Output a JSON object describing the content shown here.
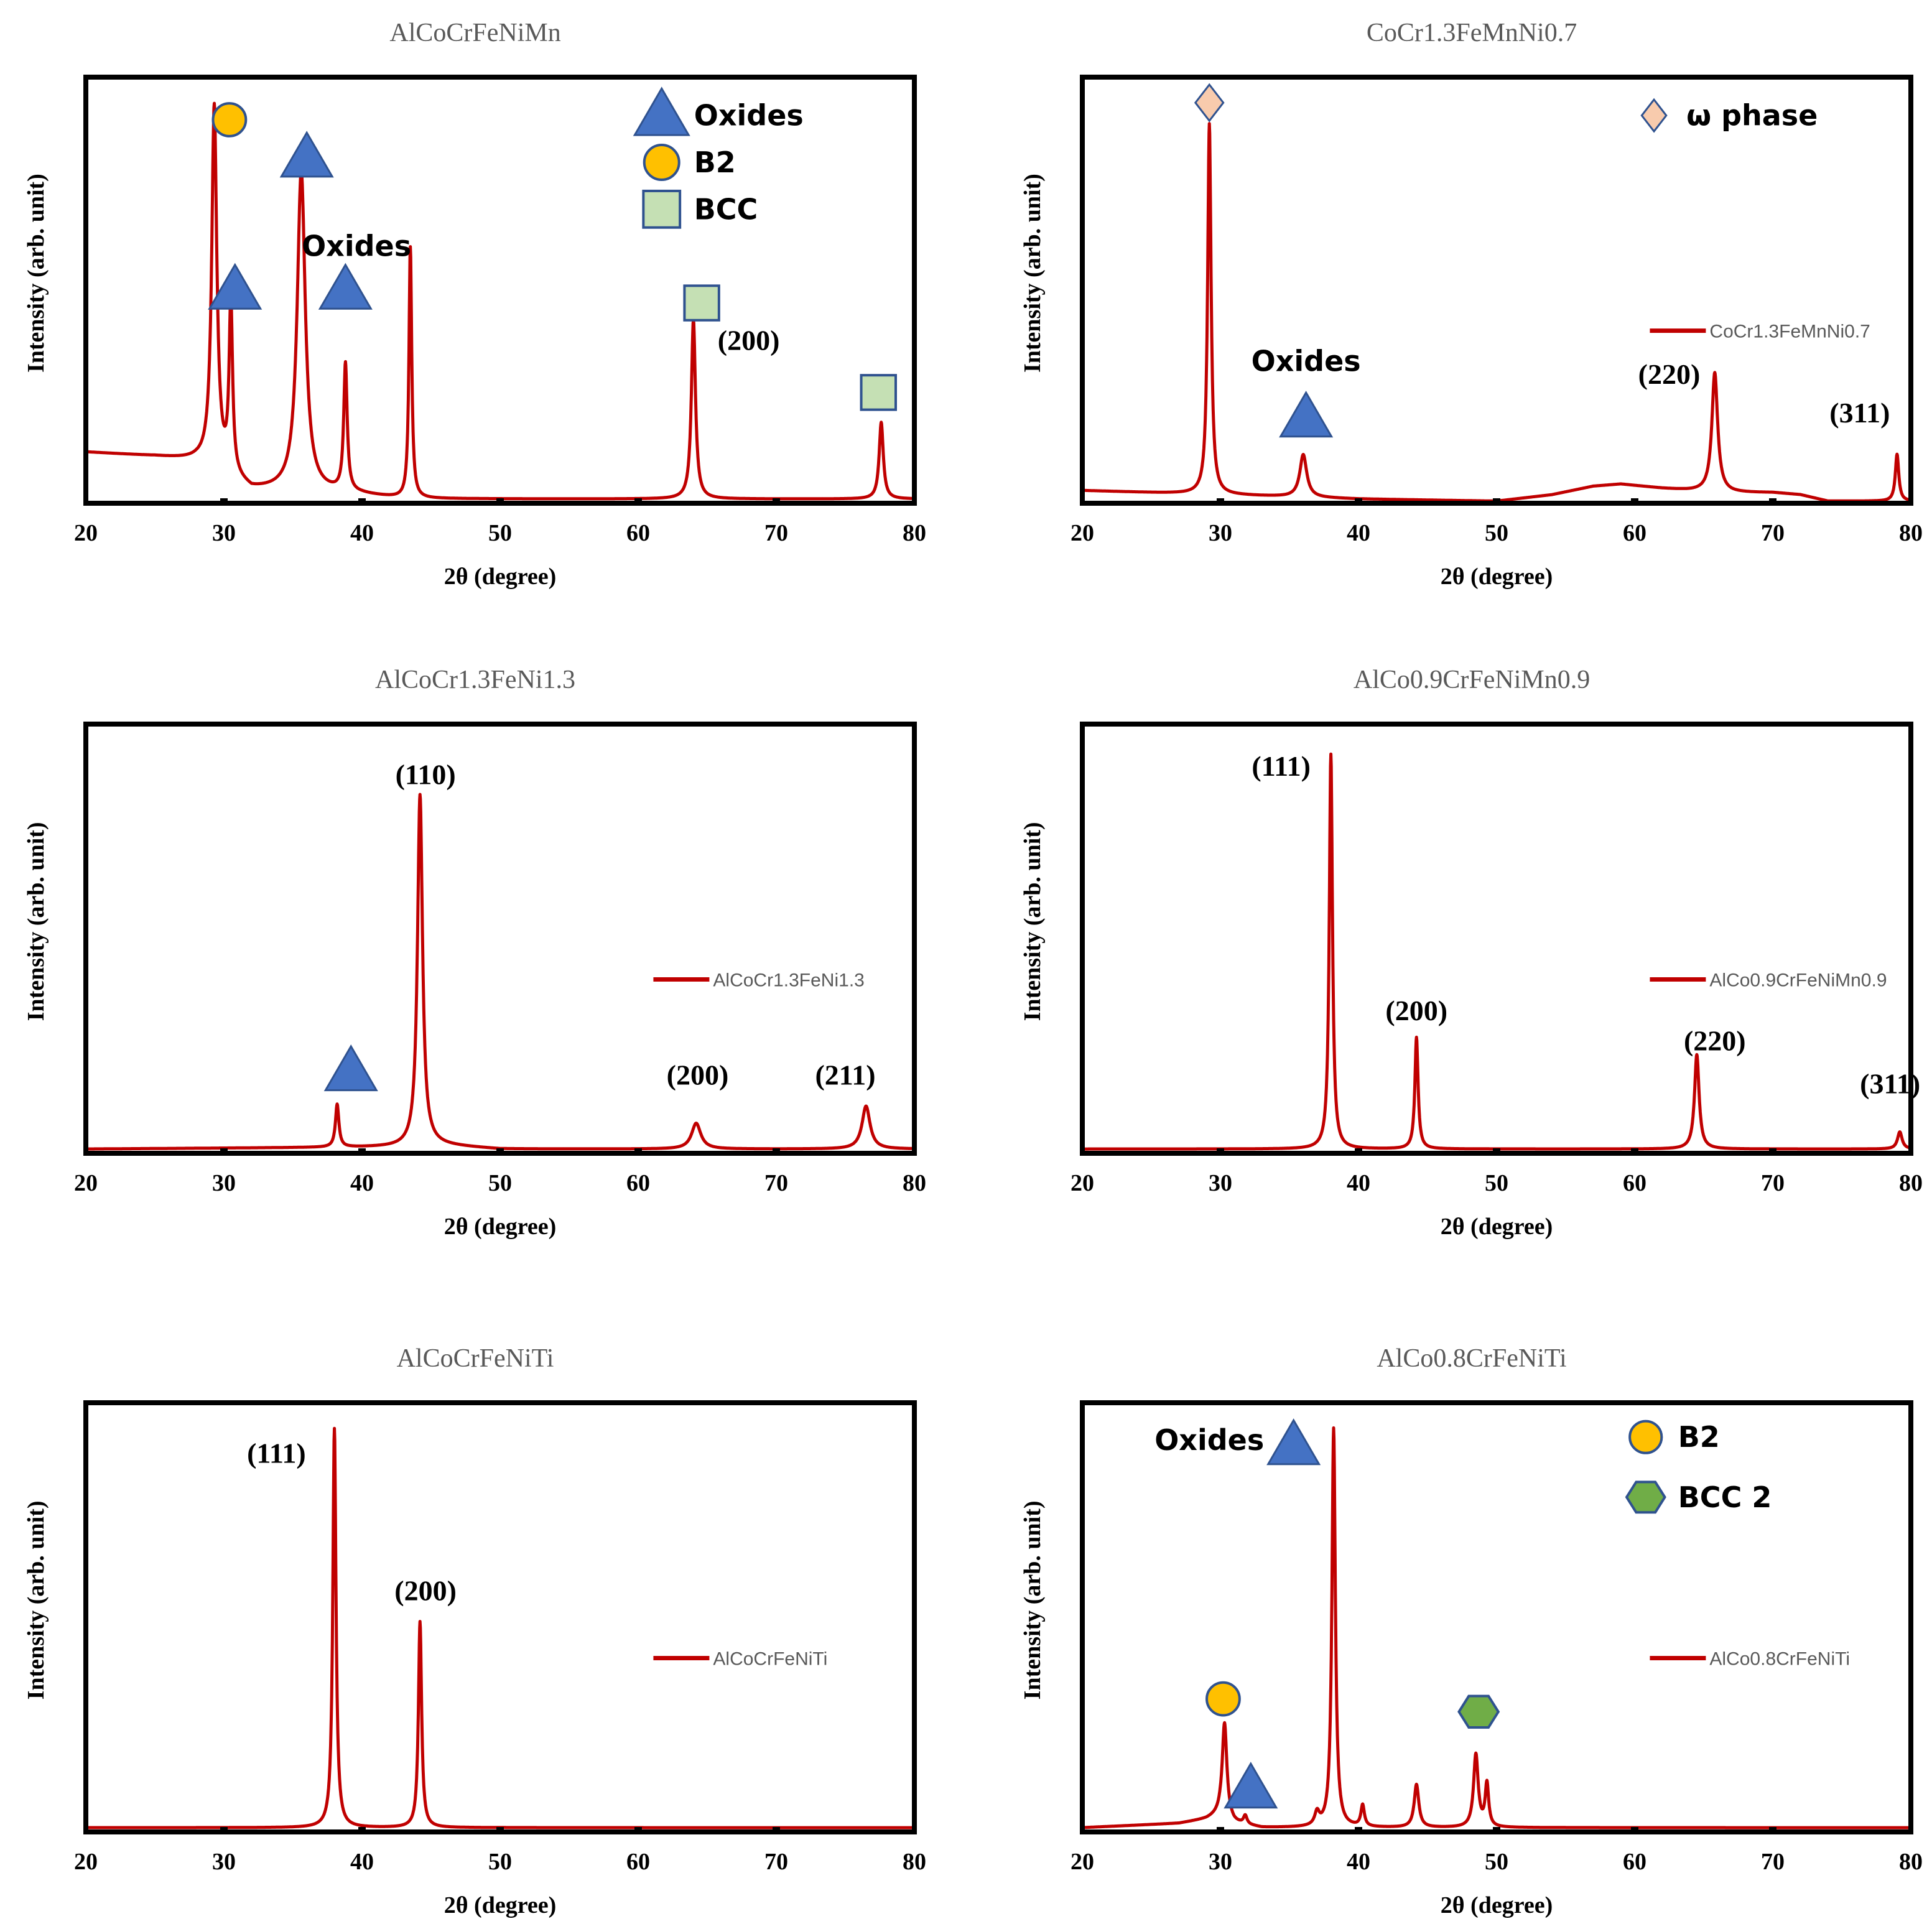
{
  "chart_data": [
    {
      "type": "line",
      "title": "AlCoCrFeNiMn",
      "xlabel": "2θ (degree)",
      "ylabel": "Intensity (arb. unit)",
      "xlim": [
        20,
        80
      ],
      "ylim": [
        0,
        100
      ],
      "xticks": [
        "20",
        "30",
        "40",
        "50",
        "60",
        "70",
        "80"
      ],
      "grid": false,
      "color": "#c00000",
      "series": [
        {
          "name": "",
          "baseline": 1,
          "background": [
            [
              20,
              12
            ],
            [
              25,
              11
            ],
            [
              28,
              10
            ],
            [
              29.3,
              9
            ],
            [
              30.5,
              6
            ],
            [
              32,
              3
            ],
            [
              35,
              3
            ],
            [
              40,
              2
            ],
            [
              43,
              1
            ],
            [
              44.5,
              1
            ],
            [
              50,
              1
            ],
            [
              80,
              1
            ]
          ],
          "peaks": [
            [
              29.3,
              84,
              0.22
            ],
            [
              30.5,
              40,
              0.15
            ],
            [
              35.6,
              75,
              0.35
            ],
            [
              38.8,
              30,
              0.15
            ],
            [
              43.5,
              59,
              0.12
            ],
            [
              64.0,
              42,
              0.18
            ],
            [
              77.6,
              18,
              0.18
            ]
          ]
        }
      ],
      "annotations": [
        {
          "kind": "circle",
          "x": 30.4,
          "y": 90
        },
        {
          "kind": "triangle",
          "x": 36.0,
          "y": 81
        },
        {
          "kind": "triangle",
          "x": 30.8,
          "y": 50
        },
        {
          "kind": "triangle",
          "x": 38.8,
          "y": 50
        },
        {
          "kind": "square",
          "x": 64.6,
          "y": 47
        },
        {
          "kind": "square",
          "x": 77.4,
          "y": 26
        },
        {
          "kind": "text",
          "style": "ann",
          "x": 39.6,
          "y": 58,
          "text": "Oxides"
        },
        {
          "kind": "text",
          "style": "hkl",
          "x": 68.0,
          "y": 36,
          "text": "(200)"
        }
      ],
      "legend": [
        {
          "marker": "triangle",
          "label": "Oxides"
        },
        {
          "marker": "circle",
          "label": "B2"
        },
        {
          "marker": "square",
          "label": "BCC"
        }
      ]
    },
    {
      "type": "line",
      "title": "CoCr1.3FeMnNi0.7",
      "xlabel": "2θ (degree)",
      "ylabel": "Intensity (arb. unit)",
      "xlim": [
        20,
        80
      ],
      "ylim": [
        0,
        100
      ],
      "xticks": [
        "20",
        "30",
        "40",
        "50",
        "60",
        "70",
        "80"
      ],
      "grid": false,
      "color": "#c00000",
      "series": [
        {
          "name": "CoCr1.3FeMnNi0.7",
          "baseline": 2,
          "background": [
            [
              20,
              3
            ],
            [
              30,
              2
            ],
            [
              40,
              1
            ],
            [
              50,
              0.5
            ],
            [
              54,
              2
            ],
            [
              57,
              4
            ],
            [
              59,
              4.5
            ],
            [
              62,
              3.5
            ],
            [
              64,
              3
            ],
            [
              67,
              2.5
            ],
            [
              70,
              2.5
            ],
            [
              72,
              2
            ],
            [
              74,
              0.5
            ],
            [
              80,
              0.5
            ]
          ],
          "peaks": [
            [
              29.2,
              87,
              0.15
            ],
            [
              36.0,
              10,
              0.3
            ],
            [
              65.8,
              28,
              0.25
            ],
            [
              79.0,
              11,
              0.15
            ]
          ]
        }
      ],
      "annotations": [
        {
          "kind": "diamond",
          "x": 29.2,
          "y": 94
        },
        {
          "kind": "triangle",
          "x": 36.2,
          "y": 20
        },
        {
          "kind": "text",
          "style": "ann",
          "x": 36.2,
          "y": 31,
          "text": "Oxides"
        },
        {
          "kind": "text",
          "style": "hkl",
          "x": 62.5,
          "y": 28,
          "text": "(220)"
        },
        {
          "kind": "text",
          "style": "hkl",
          "x": 76.3,
          "y": 19,
          "text": "(311)"
        }
      ],
      "legend": [
        {
          "marker": "diamond",
          "label": "ω phase"
        }
      ]
    },
    {
      "type": "line",
      "title": "AlCoCr1.3FeNi1.3",
      "xlabel": "2θ (degree)",
      "ylabel": "Intensity (arb. unit)",
      "xlim": [
        20,
        80
      ],
      "ylim": [
        0,
        100
      ],
      "xticks": [
        "20",
        "30",
        "40",
        "50",
        "60",
        "70",
        "80"
      ],
      "grid": false,
      "color": "#c00000",
      "series": [
        {
          "name": "AlCoCr1.3FeNi1.3",
          "baseline": 1,
          "background": [
            [
              20,
              1
            ],
            [
              44,
              1.5
            ],
            [
              45,
              2
            ],
            [
              50,
              1
            ],
            [
              80,
              1
            ]
          ],
          "peaks": [
            [
              38.2,
              10,
              0.15
            ],
            [
              44.2,
              82,
              0.22
            ],
            [
              64.2,
              6,
              0.4
            ],
            [
              76.5,
              10,
              0.35
            ]
          ]
        }
      ],
      "annotations": [
        {
          "kind": "triangle",
          "x": 39.2,
          "y": 19
        },
        {
          "kind": "text",
          "style": "hkl",
          "x": 44.6,
          "y": 86,
          "text": "(110)"
        },
        {
          "kind": "text",
          "style": "hkl",
          "x": 64.3,
          "y": 16,
          "text": "(200)"
        },
        {
          "kind": "text",
          "style": "hkl",
          "x": 75.0,
          "y": 16,
          "text": "(211)"
        }
      ],
      "legend": []
    },
    {
      "type": "line",
      "title": "AlCo0.9CrFeNiMn0.9",
      "xlabel": "2θ (degree)",
      "ylabel": "Intensity (arb. unit)",
      "xlim": [
        20,
        80
      ],
      "ylim": [
        0,
        100
      ],
      "xticks": [
        "20",
        "30",
        "40",
        "50",
        "60",
        "70",
        "80"
      ],
      "grid": false,
      "color": "#c00000",
      "series": [
        {
          "name": "AlCo0.9CrFeNiMn0.9",
          "baseline": 1,
          "background": [
            [
              20,
              1
            ],
            [
              80,
              1
            ]
          ],
          "peaks": [
            [
              38.0,
              92,
              0.14
            ],
            [
              44.2,
              26,
              0.14
            ],
            [
              64.5,
              22,
              0.2
            ],
            [
              79.2,
              4,
              0.2
            ]
          ]
        }
      ],
      "annotations": [
        {
          "kind": "text",
          "style": "hkl",
          "x": 34.4,
          "y": 88,
          "text": "(111)"
        },
        {
          "kind": "text",
          "style": "hkl",
          "x": 44.2,
          "y": 31,
          "text": "(200)"
        },
        {
          "kind": "text",
          "style": "hkl",
          "x": 65.8,
          "y": 24,
          "text": "(220)"
        },
        {
          "kind": "text",
          "style": "hkl",
          "x": 78.5,
          "y": 14,
          "text": "(311)"
        }
      ],
      "legend": []
    },
    {
      "type": "line",
      "title": "AlCoCrFeNiTi",
      "xlabel": "2θ (degree)",
      "ylabel": "Intensity (arb. unit)",
      "xlim": [
        20,
        80
      ],
      "ylim": [
        0,
        100
      ],
      "xticks": [
        "20",
        "30",
        "40",
        "50",
        "60",
        "70",
        "80"
      ],
      "grid": false,
      "color": "#c00000",
      "series": [
        {
          "name": "AlCoCrFeNiTi",
          "baseline": 1,
          "background": [
            [
              20,
              1
            ],
            [
              80,
              1
            ]
          ],
          "peaks": [
            [
              38.0,
              93,
              0.14
            ],
            [
              44.2,
              48,
              0.14
            ]
          ]
        }
      ],
      "annotations": [
        {
          "kind": "text",
          "style": "hkl",
          "x": 33.8,
          "y": 86,
          "text": "(111)"
        },
        {
          "kind": "text",
          "style": "hkl",
          "x": 44.6,
          "y": 54,
          "text": "(200)"
        }
      ],
      "legend": []
    },
    {
      "type": "line",
      "title": "AlCo0.8CrFeNiTi",
      "xlabel": "2θ (degree)",
      "ylabel": "Intensity (arb. unit)",
      "xlim": [
        20,
        80
      ],
      "ylim": [
        0,
        100
      ],
      "xticks": [
        "20",
        "30",
        "40",
        "50",
        "60",
        "70",
        "80"
      ],
      "grid": false,
      "color": "#c00000",
      "series": [
        {
          "name": "AlCo0.8CrFeNiTi",
          "baseline": 1,
          "background": [
            [
              20,
              1
            ],
            [
              27,
              2
            ],
            [
              29,
              3
            ],
            [
              30,
              4
            ],
            [
              31,
              2
            ],
            [
              33,
              1
            ],
            [
              80,
              1
            ]
          ],
          "peaks": [
            [
              30.3,
              22,
              0.2
            ],
            [
              31.8,
              2,
              0.15
            ],
            [
              37.0,
              3,
              0.2
            ],
            [
              38.2,
              93,
              0.15
            ],
            [
              40.3,
              5,
              0.15
            ],
            [
              44.2,
              10,
              0.2
            ],
            [
              48.5,
              17,
              0.2
            ],
            [
              49.3,
              10,
              0.15
            ]
          ]
        }
      ],
      "annotations": [
        {
          "kind": "circle",
          "x": 30.2,
          "y": 31
        },
        {
          "kind": "triangle",
          "x": 32.2,
          "y": 10
        },
        {
          "kind": "hexagon",
          "x": 48.7,
          "y": 28
        },
        {
          "kind": "text",
          "style": "ann",
          "x": 29.2,
          "y": 89,
          "text": "Oxides"
        },
        {
          "kind": "triangle",
          "x": 35.3,
          "y": 90
        }
      ],
      "legend": [
        {
          "marker": "circle",
          "label": "B2"
        },
        {
          "marker": "hexagon",
          "label": "BCC 2"
        }
      ]
    }
  ]
}
